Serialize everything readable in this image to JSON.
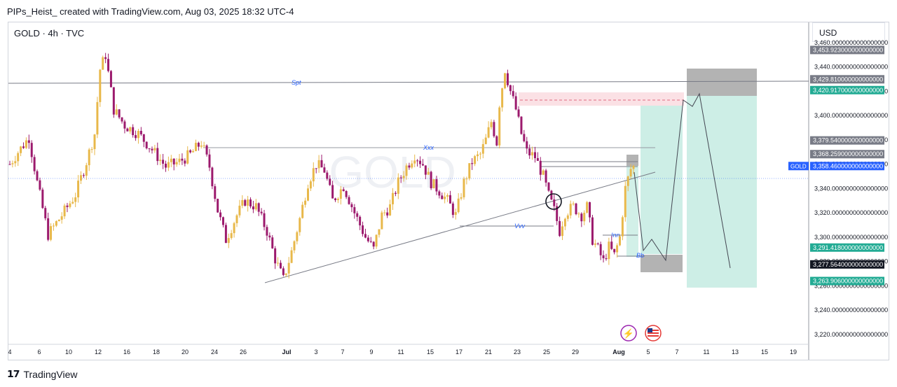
{
  "header": {
    "attribution": "PIPs_Heist_ created with TradingView.com, Aug 03, 2025 18:32 UTC-4"
  },
  "symbol": {
    "label": "GOLD · 4h · TVC"
  },
  "currency": "USD",
  "footer": {
    "brand": "TradingView"
  },
  "colors": {
    "up": "#e8b84a",
    "down": "#9c1a6d",
    "tp_zone": "#b2e6da",
    "sl_zone": "#fbd4d9",
    "label_green": "#22ab94",
    "grey_box": "#9e9e9e"
  },
  "chart_data": {
    "type": "candlestick",
    "symbol": "GOLD",
    "timeframe": "4h",
    "source": "TVC",
    "ylim": [
      3213,
      3472
    ],
    "x_ticks": [
      "4",
      "6",
      "10",
      "12",
      "16",
      "18",
      "20",
      "24",
      "26",
      "Jul",
      "3",
      "7",
      "9",
      "11",
      "15",
      "17",
      "21",
      "23",
      "25",
      "29",
      "Aug",
      "5",
      "7",
      "11",
      "13",
      "15",
      "19"
    ],
    "y_ticks": [
      "3,460.0000000000000000",
      "3,440.0000000000000000",
      "3,420.0000000000000000",
      "3,400.0000000000000000",
      "3,380.0000000000000000",
      "3,360.0000000000000000",
      "3,340.0000000000000000",
      "3,320.0000000000000000",
      "3,300.0000000000000000",
      "3,280.0000000000000000",
      "3,260.0000000000000000",
      "3,240.0000000000000000",
      "3,220.0000000000000000"
    ],
    "price_labels": [
      {
        "price": 3453.923,
        "text": "3,453.923000000000000",
        "style": "grey"
      },
      {
        "price": 3429.81,
        "text": "3,429.810000000000000",
        "style": "grey"
      },
      {
        "price": 3420.917,
        "text": "3,420.917000000000000",
        "style": "green"
      },
      {
        "price": 3379.54,
        "text": "3,379.540000000000000",
        "style": "grey"
      },
      {
        "price": 3368.259,
        "text": "3,368.259000000000000",
        "style": "grey"
      },
      {
        "price": 3358.46,
        "text": "3,358.460000000000000",
        "style": "blue",
        "tag": "GOLD"
      },
      {
        "price": 3291.418,
        "text": "3,291.418000000000000",
        "style": "green"
      },
      {
        "price": 3277.564,
        "text": "3,277.564000000000000",
        "style": "black"
      },
      {
        "price": 3263.906,
        "text": "3,263.906000000000000",
        "style": "green"
      }
    ],
    "annotations": [
      "Spt",
      "Xxx",
      "Vvv",
      "Inn",
      "Bb"
    ],
    "last_price": 3358.46,
    "path": [
      [
        0,
        3360
      ],
      [
        3,
        3370
      ],
      [
        7,
        3382
      ],
      [
        10,
        3345
      ],
      [
        14,
        3302
      ],
      [
        19,
        3318
      ],
      [
        24,
        3335
      ],
      [
        28,
        3362
      ],
      [
        31,
        3385
      ],
      [
        33,
        3438
      ],
      [
        35,
        3450
      ],
      [
        38,
        3405
      ],
      [
        42,
        3392
      ],
      [
        47,
        3385
      ],
      [
        52,
        3372
      ],
      [
        57,
        3358
      ],
      [
        62,
        3362
      ],
      [
        66,
        3368
      ],
      [
        70,
        3378
      ],
      [
        73,
        3358
      ],
      [
        76,
        3322
      ],
      [
        79,
        3298
      ],
      [
        83,
        3318
      ],
      [
        86,
        3330
      ],
      [
        90,
        3325
      ],
      [
        94,
        3305
      ],
      [
        97,
        3282
      ],
      [
        100,
        3265
      ],
      [
        103,
        3288
      ],
      [
        106,
        3315
      ],
      [
        109,
        3345
      ],
      [
        112,
        3360
      ],
      [
        115,
        3355
      ],
      [
        118,
        3330
      ],
      [
        122,
        3342
      ],
      [
        126,
        3320
      ],
      [
        130,
        3300
      ],
      [
        133,
        3290
      ],
      [
        136,
        3318
      ],
      [
        139,
        3325
      ],
      [
        142,
        3345
      ],
      [
        145,
        3358
      ],
      [
        148,
        3368
      ],
      [
        151,
        3360
      ],
      [
        154,
        3345
      ],
      [
        157,
        3338
      ],
      [
        160,
        3330
      ],
      [
        163,
        3318
      ],
      [
        166,
        3345
      ],
      [
        169,
        3362
      ],
      [
        172,
        3368
      ],
      [
        174,
        3380
      ],
      [
        176,
        3395
      ],
      [
        178,
        3378
      ],
      [
        179,
        3410
      ],
      [
        181,
        3438
      ],
      [
        183,
        3420
      ],
      [
        185,
        3405
      ],
      [
        187,
        3385
      ],
      [
        189,
        3370
      ],
      [
        192,
        3366
      ],
      [
        195,
        3350
      ],
      [
        197,
        3334
      ],
      [
        199,
        3322
      ],
      [
        201,
        3305
      ],
      [
        203,
        3320
      ],
      [
        206,
        3325
      ],
      [
        209,
        3318
      ],
      [
        211,
        3325
      ],
      [
        213,
        3298
      ],
      [
        215,
        3290
      ],
      [
        217,
        3280
      ],
      [
        219,
        3292
      ],
      [
        221,
        3285
      ],
      [
        223,
        3300
      ],
      [
        225,
        3340
      ],
      [
        227,
        3356
      ],
      [
        228,
        3358
      ]
    ]
  }
}
